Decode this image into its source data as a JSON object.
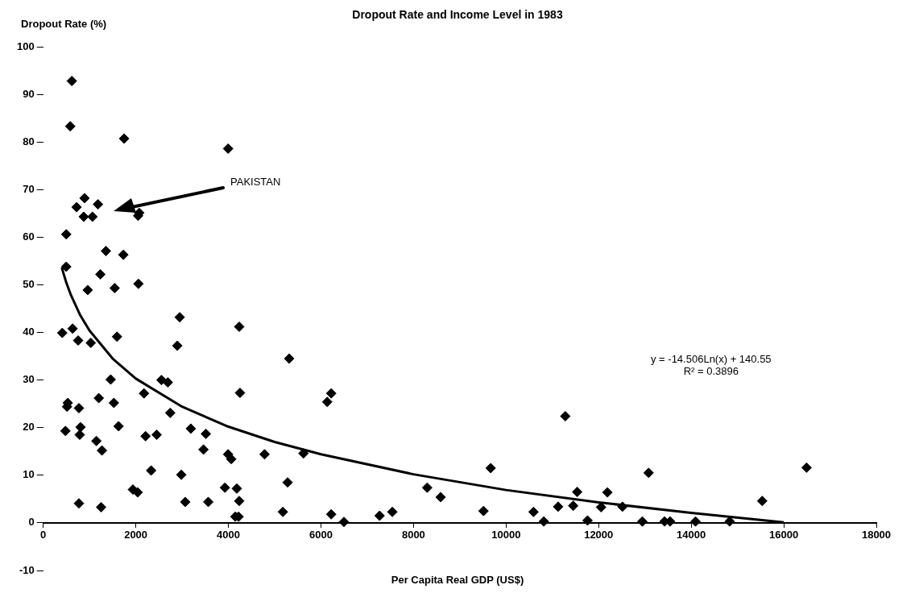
{
  "chart_data": {
    "type": "scatter",
    "title": "Dropout Rate and Income Level in 1983",
    "xlabel": "Per Capita Real GDP (US$)",
    "ylabel": "Dropout Rate (%)",
    "xlim": [
      0,
      18000
    ],
    "xticks": [
      0,
      2000,
      4000,
      6000,
      8000,
      10000,
      12000,
      14000,
      16000,
      18000
    ],
    "ylim": [
      -10,
      100
    ],
    "yticks": [
      -10,
      0,
      10,
      20,
      30,
      40,
      50,
      60,
      70,
      80,
      90,
      100
    ],
    "grid": false,
    "marker": "diamond",
    "annotations": [
      "PAKISTAN",
      "y = -14.506Ln(x) + 140.55",
      "R² = 0.3896"
    ],
    "series": [
      {
        "color": "#000000",
        "x": [
          617,
          583,
          1748,
          3994,
          891,
          720,
          1183,
          874,
          1063,
          2074,
          2050,
          497,
          1354,
          1731,
          497,
          1234,
          2057,
          1543,
          960,
          2948,
          4234,
          411,
          634,
          754,
          1028,
          1594,
          2897,
          5314,
          1457,
          2554,
          2691,
          4251,
          2177,
          531,
          514,
          1200,
          771,
          1526,
          2743,
          480,
          806,
          788,
          1628,
          1148,
          1268,
          2211,
          2451,
          3188,
          3514,
          3462,
          3994,
          4062,
          4782,
          2331,
          2983,
          1937,
          2040,
          3925,
          4182,
          5280,
          771,
          1251,
          3068,
          3565,
          4234,
          5177,
          4150,
          4220,
          6222,
          6136,
          5622,
          6222,
          6497,
          7268,
          7542,
          8296,
          8587,
          9668,
          9513,
          10593,
          10816,
          11280,
          11125,
          11451,
          11537,
          11760,
          12190,
          12052,
          12515,
          12944,
          13080,
          13424,
          13544,
          14093,
          14830,
          15534,
          16493
        ],
        "values": [
          92.8,
          83.3,
          80.7,
          78.6,
          68.2,
          66.3,
          66.9,
          64.3,
          64.3,
          65.1,
          64.5,
          60.6,
          57.1,
          56.3,
          53.8,
          52.2,
          50.2,
          49.3,
          48.9,
          43.2,
          41.2,
          39.9,
          40.8,
          38.3,
          37.8,
          39.1,
          37.2,
          34.5,
          30.1,
          30.0,
          29.5,
          27.3,
          27.2,
          25.2,
          24.4,
          26.2,
          24.1,
          25.2,
          23.1,
          19.3,
          20.1,
          18.5,
          20.3,
          17.2,
          15.2,
          18.2,
          18.5,
          19.8,
          18.7,
          15.4,
          14.4,
          13.4,
          14.4,
          11.0,
          10.1,
          7.0,
          6.4,
          7.4,
          7.2,
          8.5,
          4.1,
          3.3,
          4.4,
          4.4,
          4.6,
          2.3,
          1.3,
          1.3,
          27.2,
          25.4,
          14.6,
          1.8,
          0.2,
          1.5,
          2.3,
          7.4,
          5.4,
          11.5,
          2.5,
          2.3,
          0.3,
          22.4,
          3.4,
          3.6,
          6.5,
          0.5,
          6.4,
          3.3,
          3.4,
          0.3,
          10.5,
          0.3,
          0.3,
          0.3,
          0.3,
          4.6,
          11.6
        ]
      },
      {
        "type": "line",
        "color": "#000000",
        "marker": "none",
        "x": [
          400,
          500,
          600,
          800,
          1000,
          1500,
          2000,
          3000,
          4000,
          5000,
          6000,
          8000,
          10000,
          12000,
          14000,
          16000
        ],
        "values": [
          53.6,
          50.4,
          47.8,
          43.6,
          40.4,
          34.5,
          30.3,
          24.4,
          20.2,
          17.0,
          14.4,
          10.2,
          6.9,
          4.3,
          2.1,
          0.1
        ]
      }
    ]
  }
}
